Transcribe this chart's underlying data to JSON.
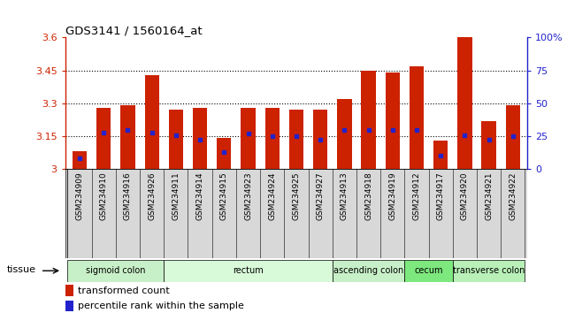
{
  "title": "GDS3141 / 1560164_at",
  "samples": [
    "GSM234909",
    "GSM234910",
    "GSM234916",
    "GSM234926",
    "GSM234911",
    "GSM234914",
    "GSM234915",
    "GSM234923",
    "GSM234924",
    "GSM234925",
    "GSM234927",
    "GSM234913",
    "GSM234918",
    "GSM234919",
    "GSM234912",
    "GSM234917",
    "GSM234920",
    "GSM234921",
    "GSM234922"
  ],
  "bar_values": [
    3.08,
    3.28,
    3.29,
    3.43,
    3.27,
    3.28,
    3.14,
    3.28,
    3.28,
    3.27,
    3.27,
    3.32,
    3.45,
    3.44,
    3.47,
    3.13,
    3.6,
    3.22,
    3.29
  ],
  "percentile_values": [
    8,
    28,
    30,
    28,
    26,
    22,
    13,
    27,
    25,
    25,
    22,
    30,
    30,
    30,
    30,
    10,
    26,
    22,
    25
  ],
  "ylim_left": [
    3.0,
    3.6
  ],
  "ylim_right": [
    0,
    100
  ],
  "yticks_left": [
    3.0,
    3.15,
    3.3,
    3.45,
    3.6
  ],
  "yticks_right": [
    0,
    25,
    50,
    75,
    100
  ],
  "ytick_labels_left": [
    "3",
    "3.15",
    "3.3",
    "3.45",
    "3.6"
  ],
  "ytick_labels_right": [
    "0",
    "25",
    "50",
    "75",
    "100%"
  ],
  "tissue_groups": [
    {
      "label": "sigmoid colon",
      "start": 0,
      "end": 4,
      "color": "#c8f0c8"
    },
    {
      "label": "rectum",
      "start": 4,
      "end": 11,
      "color": "#d8fad8"
    },
    {
      "label": "ascending colon",
      "start": 11,
      "end": 14,
      "color": "#c8f0c8"
    },
    {
      "label": "cecum",
      "start": 14,
      "end": 16,
      "color": "#7de87d"
    },
    {
      "label": "transverse colon",
      "start": 16,
      "end": 19,
      "color": "#b8f0b8"
    }
  ],
  "bar_color": "#cc2200",
  "dot_color": "#2222cc",
  "bar_width": 0.6
}
